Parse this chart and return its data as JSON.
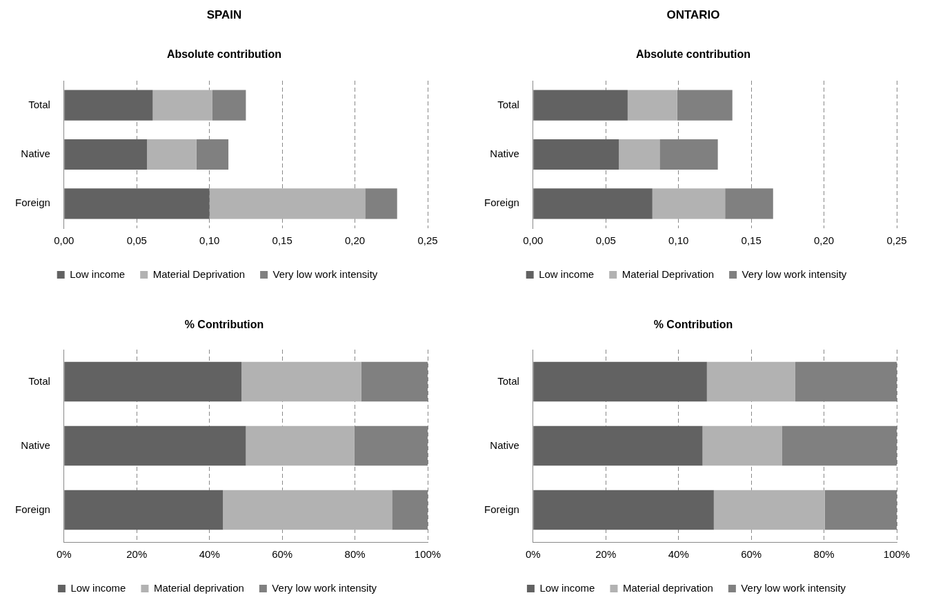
{
  "chart_data": [
    {
      "type": "bar",
      "title": "SPAIN",
      "subtitle": "Absolute contribution",
      "orientation": "horizontal",
      "stacked": true,
      "categories": [
        "Total",
        "Native",
        "Foreign"
      ],
      "series": [
        {
          "name": "Low income",
          "color": "#626262",
          "values": [
            0.061,
            0.057,
            0.1
          ]
        },
        {
          "name": "Material Deprivation",
          "color": "#b2b2b2",
          "values": [
            0.041,
            0.034,
            0.107
          ]
        },
        {
          "name": "Very low work intensity",
          "color": "#808080",
          "values": [
            0.023,
            0.022,
            0.022
          ]
        }
      ],
      "xlim": [
        0,
        0.25
      ],
      "xticks": [
        {
          "value": 0,
          "label": "0,00"
        },
        {
          "value": 0.05,
          "label": "0,05"
        },
        {
          "value": 0.1,
          "label": "0,10"
        },
        {
          "value": 0.15,
          "label": "0,15"
        },
        {
          "value": 0.2,
          "label": "0,20"
        },
        {
          "value": 0.25,
          "label": "0,25"
        }
      ],
      "grid": "x",
      "legend": "bottom"
    },
    {
      "type": "bar",
      "title": "ONTARIO",
      "subtitle": "Absolute contribution",
      "orientation": "horizontal",
      "stacked": true,
      "categories": [
        "Total",
        "Native",
        "Foreign"
      ],
      "series": [
        {
          "name": "Low income",
          "color": "#626262",
          "values": [
            0.065,
            0.059,
            0.082
          ]
        },
        {
          "name": "Material Deprivation",
          "color": "#b2b2b2",
          "values": [
            0.034,
            0.028,
            0.05
          ]
        },
        {
          "name": "Very low work intensity",
          "color": "#808080",
          "values": [
            0.038,
            0.04,
            0.033
          ]
        }
      ],
      "xlim": [
        0,
        0.25
      ],
      "xticks": [
        {
          "value": 0,
          "label": "0,00"
        },
        {
          "value": 0.05,
          "label": "0,05"
        },
        {
          "value": 0.1,
          "label": "0,10"
        },
        {
          "value": 0.15,
          "label": "0,15"
        },
        {
          "value": 0.2,
          "label": "0,20"
        },
        {
          "value": 0.25,
          "label": "0,25"
        }
      ],
      "grid": "x",
      "legend": "bottom"
    },
    {
      "type": "bar",
      "title": "% Contribution",
      "orientation": "horizontal",
      "stacked": true,
      "categories": [
        "Total",
        "Native",
        "Foreign"
      ],
      "series": [
        {
          "name": "Low income",
          "color": "#626262",
          "values": [
            48.8,
            50.0,
            43.7
          ]
        },
        {
          "name": "Material deprivation",
          "color": "#b2b2b2",
          "values": [
            32.9,
            29.8,
            46.5
          ]
        },
        {
          "name": "Very low work intensity",
          "color": "#808080",
          "values": [
            18.3,
            20.2,
            9.8
          ]
        }
      ],
      "xlim": [
        0,
        100
      ],
      "xticks": [
        {
          "value": 0,
          "label": "0%"
        },
        {
          "value": 20,
          "label": "20%"
        },
        {
          "value": 40,
          "label": "40%"
        },
        {
          "value": 60,
          "label": "60%"
        },
        {
          "value": 80,
          "label": "80%"
        },
        {
          "value": 100,
          "label": "100%"
        }
      ],
      "grid": "x",
      "legend": "bottom"
    },
    {
      "type": "bar",
      "title": "% Contribution",
      "orientation": "horizontal",
      "stacked": true,
      "categories": [
        "Total",
        "Native",
        "Foreign"
      ],
      "series": [
        {
          "name": "Low income",
          "color": "#626262",
          "values": [
            47.8,
            46.6,
            49.7
          ]
        },
        {
          "name": "Material deprivation",
          "color": "#b2b2b2",
          "values": [
            24.3,
            21.8,
            30.5
          ]
        },
        {
          "name": "Very low work intensity",
          "color": "#808080",
          "values": [
            27.9,
            31.6,
            19.8
          ]
        }
      ],
      "xlim": [
        0,
        100
      ],
      "xticks": [
        {
          "value": 0,
          "label": "0%"
        },
        {
          "value": 20,
          "label": "20%"
        },
        {
          "value": 40,
          "label": "40%"
        },
        {
          "value": 60,
          "label": "60%"
        },
        {
          "value": 80,
          "label": "80%"
        },
        {
          "value": 100,
          "label": "100%"
        }
      ],
      "grid": "x",
      "legend": "bottom"
    }
  ]
}
